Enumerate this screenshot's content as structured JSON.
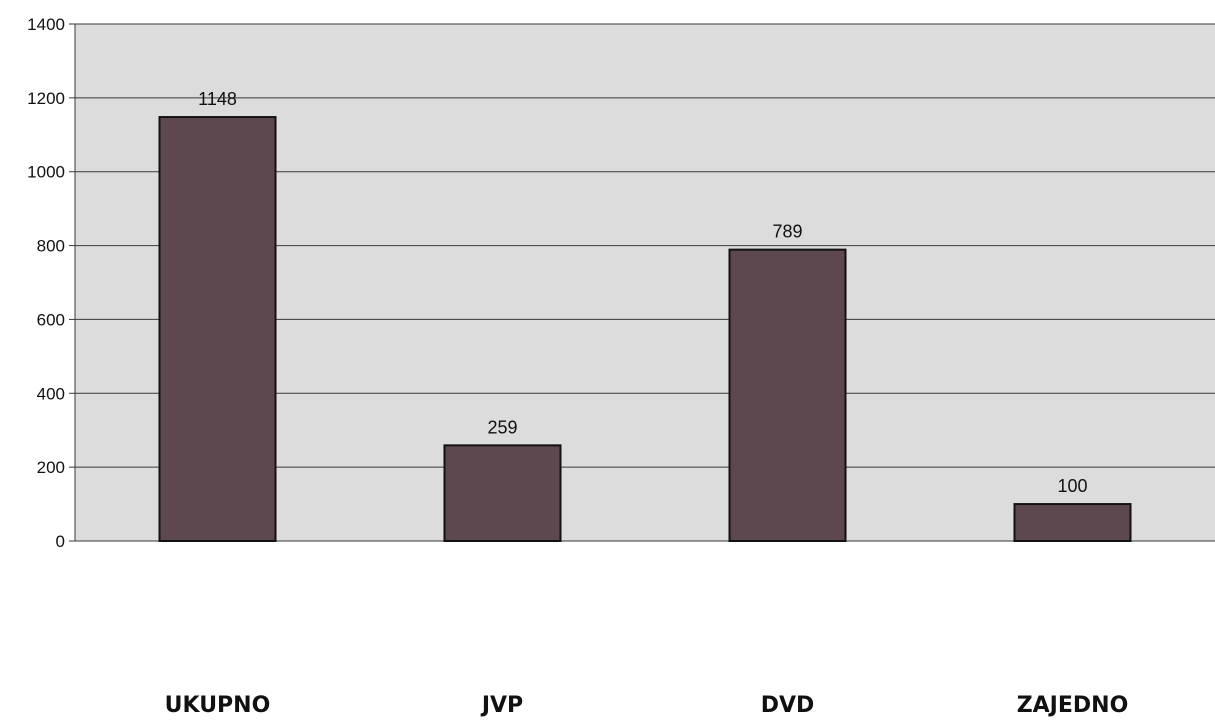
{
  "chart_data": {
    "type": "bar",
    "title": "",
    "xlabel": "",
    "ylabel": "",
    "categories": [
      "UKUPNO",
      "JVP",
      "DVD",
      "ZAJEDNO"
    ],
    "values": [
      1148,
      259,
      789,
      100
    ],
    "data_labels": [
      "1148",
      "259",
      "789",
      "100"
    ],
    "ylim": [
      0,
      1400
    ],
    "y_ticks": [
      0,
      200,
      400,
      600,
      800,
      1000,
      1200,
      1400
    ],
    "y_tick_labels": [
      "0",
      "200",
      "400",
      "600",
      "800",
      "1000",
      "1200",
      "1400"
    ],
    "grid": true,
    "legend": "none"
  },
  "colors": {
    "bar_fill": "#5e4850",
    "bar_stroke": "#111111",
    "plot_background": "#dcdcdc",
    "gridline": "#3a3a3a",
    "text": "#111111"
  }
}
